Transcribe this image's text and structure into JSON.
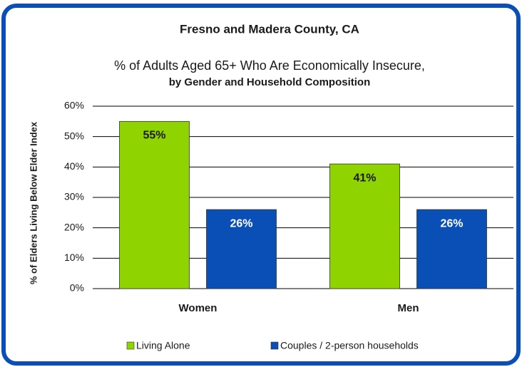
{
  "chart_data": {
    "type": "bar",
    "title": "Fresno and Madera County, CA",
    "subtitle": [
      "% of Adults Aged 65+ Who Are Economically Insecure,",
      "by Gender and Household Composition"
    ],
    "y_label": "% of  Elders Living Below  Elder Index",
    "categories": [
      "Women",
      "Men"
    ],
    "series": [
      {
        "name": "Living Alone",
        "color": "#8fd400",
        "label_color": "#1a1a1a",
        "values": [
          55,
          41
        ],
        "value_labels": [
          "55%",
          "41%"
        ]
      },
      {
        "name": "Couples / 2-person households",
        "color": "#0a4fb5",
        "label_color": "#ffffff",
        "values": [
          26,
          26
        ],
        "value_labels": [
          "26%",
          "26%"
        ]
      }
    ],
    "ylim": [
      0,
      60
    ],
    "yticks": [
      {
        "value": 0,
        "label": "0%"
      },
      {
        "value": 10,
        "label": "10%"
      },
      {
        "value": 20,
        "label": "20%"
      },
      {
        "value": 30,
        "label": "30%"
      },
      {
        "value": 40,
        "label": "40%"
      },
      {
        "value": 50,
        "label": "50%"
      },
      {
        "value": 60,
        "label": "60%"
      }
    ],
    "grid": true,
    "legend": "bottom"
  }
}
